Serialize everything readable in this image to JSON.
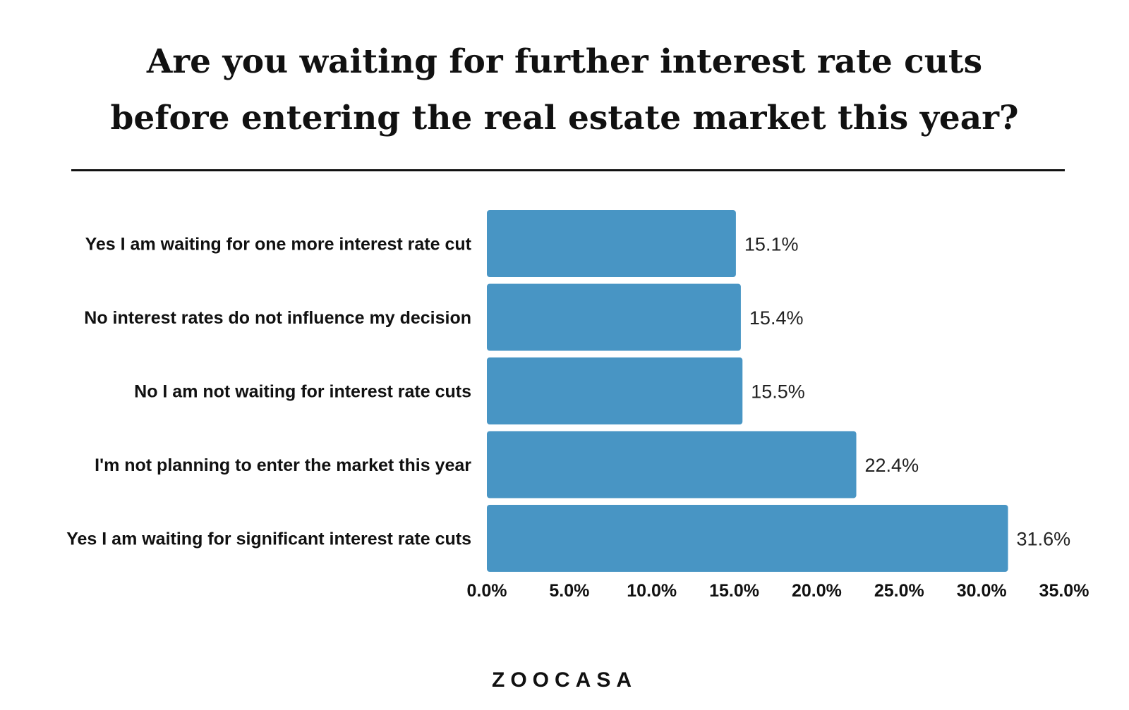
{
  "title_lines": [
    "Are you waiting for further interest rate cuts",
    "before entering the real estate market this year?"
  ],
  "logo_text": "ZOOCASA",
  "colors": {
    "bar": "#4895c4",
    "text": "#111111",
    "background": "#ffffff"
  },
  "chart_data": {
    "type": "bar",
    "orientation": "horizontal",
    "categories": [
      "Yes I am waiting for one more interest rate cut",
      "No interest rates do not influence my decision",
      "No I am not waiting for interest rate cuts",
      "I'm not planning to enter the market this year",
      "Yes I am waiting for significant interest rate cuts"
    ],
    "values": [
      15.1,
      15.4,
      15.5,
      22.4,
      31.6
    ],
    "value_labels": [
      "15.1%",
      "15.4%",
      "15.5%",
      "22.4%",
      "31.6%"
    ],
    "xlim": [
      0,
      35
    ],
    "xticks": [
      0,
      5,
      10,
      15,
      20,
      25,
      30,
      35
    ],
    "xtick_labels": [
      "0.0%",
      "5.0%",
      "10.0%",
      "15.0%",
      "20.0%",
      "25.0%",
      "30.0%",
      "35.0%"
    ],
    "grid": false,
    "legend": "none"
  }
}
